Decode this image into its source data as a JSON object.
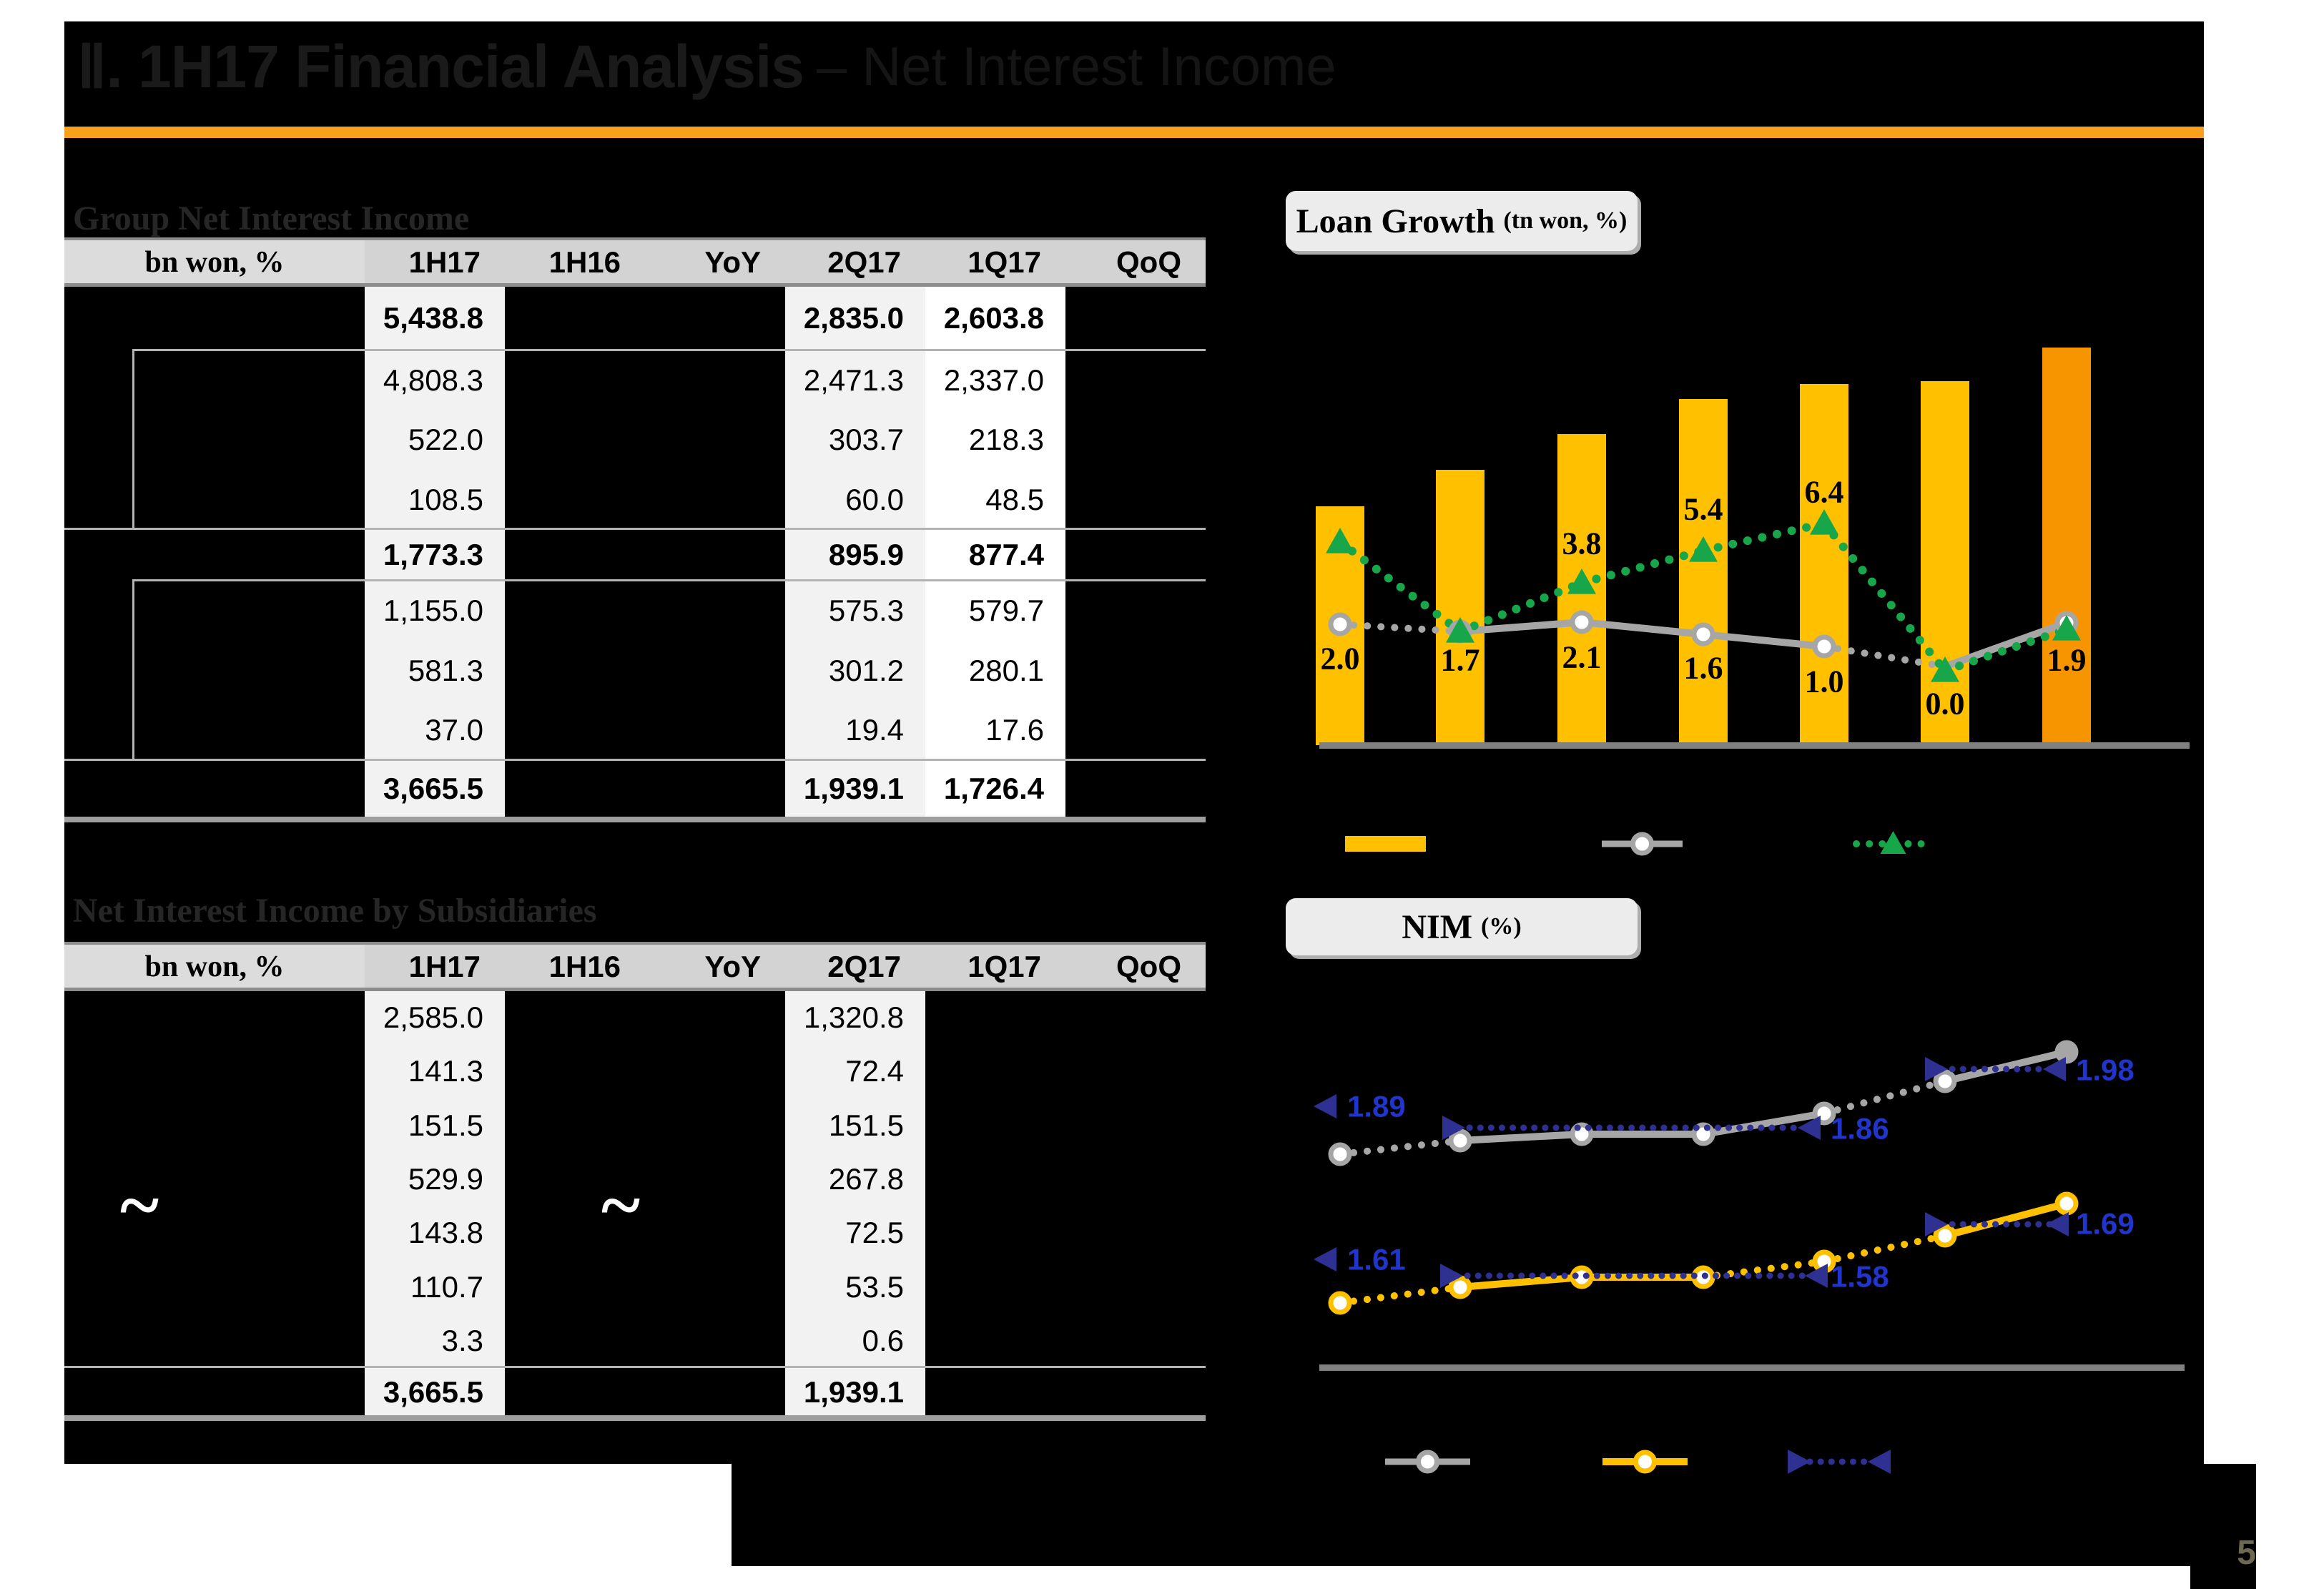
{
  "title": {
    "bold": "Ⅱ. 1H17 Financial Analysis",
    "rest": "– Net Interest Income"
  },
  "page": {
    "number": "5"
  },
  "colors": {
    "accent_orange": "#F9A11B",
    "bar_yellow": "#FFC000",
    "bar_orange_final": "#F79500",
    "green": "#17A64A",
    "gray_line": "#A6A6A6",
    "navy_triangle": "#2E3192",
    "navy_text": "#2134CC",
    "header_bg_label": "#DCDCDC",
    "header_bg_cols": "#D3D3D3",
    "col_light_bg": "#F2F2F2",
    "col_white_bg": "#FFFFFF"
  },
  "tables": {
    "group": {
      "heading": "Group Net Interest Income",
      "unit": "bn won, %",
      "columns": [
        "1H17",
        "1H16",
        "YoY",
        "2Q17",
        "1Q17",
        "QoQ"
      ],
      "rows": [
        {
          "bold": true,
          "cells": [
            "5,438.8",
            "",
            "",
            "2,835.0",
            "2,603.8",
            ""
          ]
        },
        {
          "bold": false,
          "cells": [
            "4,808.3",
            "",
            "",
            "2,471.3",
            "2,337.0",
            ""
          ]
        },
        {
          "bold": false,
          "cells": [
            "522.0",
            "",
            "",
            "303.7",
            "218.3",
            ""
          ]
        },
        {
          "bold": false,
          "cells": [
            "108.5",
            "",
            "",
            "60.0",
            "48.5",
            ""
          ]
        },
        {
          "bold": true,
          "cells": [
            "1,773.3",
            "",
            "",
            "895.9",
            "877.4",
            ""
          ]
        },
        {
          "bold": false,
          "cells": [
            "1,155.0",
            "",
            "",
            "575.3",
            "579.7",
            ""
          ]
        },
        {
          "bold": false,
          "cells": [
            "581.3",
            "",
            "",
            "301.2",
            "280.1",
            ""
          ]
        },
        {
          "bold": false,
          "cells": [
            "37.0",
            "",
            "",
            "19.4",
            "17.6",
            ""
          ]
        },
        {
          "bold": true,
          "cells": [
            "3,665.5",
            "",
            "",
            "1,939.1",
            "1,726.4",
            ""
          ]
        }
      ]
    },
    "subsidiaries": {
      "heading": "Net Interest Income by Subsidiaries",
      "unit": "bn won, %",
      "columns": [
        "1H17",
        "1H16",
        "YoY",
        "2Q17",
        "1Q17",
        "QoQ"
      ],
      "break_mark": "~",
      "rows": [
        {
          "bold": false,
          "cells": [
            "2,585.0",
            "",
            "",
            "1,320.8",
            "",
            ""
          ]
        },
        {
          "bold": false,
          "cells": [
            "141.3",
            "",
            "",
            "72.4",
            "",
            ""
          ]
        },
        {
          "bold": false,
          "cells": [
            "151.5",
            "",
            "",
            "151.5",
            "",
            ""
          ]
        },
        {
          "bold": false,
          "cells": [
            "529.9",
            "",
            "",
            "267.8",
            "",
            ""
          ]
        },
        {
          "bold": false,
          "cells": [
            "143.8",
            "",
            "",
            "72.5",
            "",
            ""
          ]
        },
        {
          "bold": false,
          "cells": [
            "110.7",
            "",
            "",
            "53.5",
            "",
            ""
          ]
        },
        {
          "bold": false,
          "cells": [
            "3.3",
            "",
            "",
            "0.6",
            "",
            ""
          ]
        },
        {
          "bold": true,
          "cells": [
            "3,665.5",
            "",
            "",
            "1,939.1",
            "",
            ""
          ]
        }
      ]
    }
  },
  "chart_data": [
    {
      "id": "loan_growth",
      "type": "bar+line",
      "title": "Loan Growth",
      "unit_label": "(tn won, %)",
      "n_periods": 7,
      "bars": {
        "name": "loan-balance-bars",
        "values_labeled": false,
        "note": "7 rising bars, final bar highlighted orange"
      },
      "series": [
        {
          "name": "growth-gray-circle",
          "marker": "circle",
          "labels": [
            "2.0",
            "1.7",
            "2.1",
            "1.6",
            "1.0",
            "0.0",
            "1.9"
          ]
        },
        {
          "name": "growth-green-triangle",
          "marker": "triangle",
          "labels_visible": [
            "3.8",
            "5.4",
            "6.4"
          ],
          "labels_positions": [
            3,
            4,
            5
          ]
        }
      ],
      "legend_markers": [
        "yellow-bar-swatch",
        "gray-line-circle-marker",
        "green-dotted-triangle-marker"
      ],
      "legend_position": "below-chart"
    },
    {
      "id": "nim",
      "type": "line",
      "title": "NIM",
      "unit_label": "(%)",
      "n_periods": 7,
      "series": [
        {
          "name": "nim-gray-circle",
          "marker": "circle",
          "values_labeled": false
        },
        {
          "name": "nim-yellow-circle",
          "marker": "circle",
          "values_labeled": false
        }
      ],
      "annotations": [
        {
          "series": "gray",
          "label": "1.89",
          "position": "left"
        },
        {
          "series": "gray",
          "label": "1.86",
          "position": "middle"
        },
        {
          "series": "gray",
          "label": "1.98",
          "position": "right"
        },
        {
          "series": "yellow",
          "label": "1.61",
          "position": "left"
        },
        {
          "series": "yellow",
          "label": "1.58",
          "position": "middle"
        },
        {
          "series": "yellow",
          "label": "1.69",
          "position": "right"
        }
      ],
      "legend_markers": [
        "gray-line-circle-marker",
        "yellow-line-circle-marker",
        "navy-dotted-triangle-range-marker"
      ],
      "legend_position": "below-chart"
    }
  ]
}
